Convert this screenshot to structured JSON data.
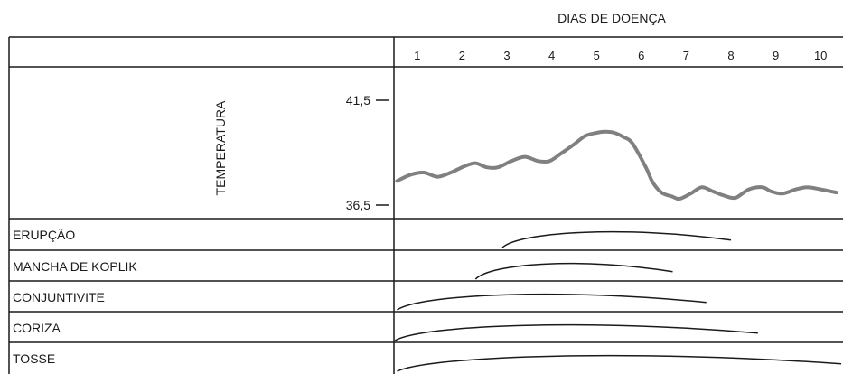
{
  "chart_data": {
    "type": "line",
    "title": "DIAS DE DOENÇA",
    "x_ticks": [
      "1",
      "2",
      "3",
      "4",
      "5",
      "6",
      "7",
      "8",
      "9",
      "10"
    ],
    "xlim": [
      0.5,
      10.5
    ],
    "temperature": {
      "label": "TEMPERATURA",
      "y_ticks": [
        "41,5",
        "36,5"
      ],
      "ylim": [
        36.5,
        41.5
      ],
      "x": [
        0.55,
        0.85,
        1.15,
        1.45,
        1.75,
        2.05,
        2.3,
        2.55,
        2.8,
        3.1,
        3.4,
        3.7,
        3.95,
        4.2,
        4.5,
        4.75,
        5.0,
        5.2,
        5.4,
        5.6,
        5.8,
        6.1,
        6.25,
        6.45,
        6.7,
        6.85,
        7.1,
        7.35,
        7.6,
        7.85,
        8.1,
        8.4,
        8.7,
        8.9,
        9.15,
        9.45,
        9.7,
        10.0,
        10.35
      ],
      "y": [
        37.65,
        37.95,
        38.05,
        37.85,
        38.05,
        38.35,
        38.5,
        38.3,
        38.3,
        38.6,
        38.8,
        38.6,
        38.6,
        38.95,
        39.4,
        39.8,
        39.95,
        40.0,
        39.95,
        39.75,
        39.45,
        38.3,
        37.6,
        37.1,
        36.9,
        36.8,
        37.05,
        37.35,
        37.15,
        36.95,
        36.85,
        37.25,
        37.35,
        37.15,
        37.05,
        37.25,
        37.35,
        37.25,
        37.1
      ]
    },
    "rows": [
      {
        "label": "ERUPÇÃO",
        "start": 2.9,
        "end": 8.0
      },
      {
        "label": "MANCHA DE KOPLIK",
        "start": 2.3,
        "end": 6.7
      },
      {
        "label": "CONJUNTIVITE",
        "start": 0.55,
        "end": 7.45
      },
      {
        "label": "CORIZA",
        "start": 0.5,
        "end": 8.6
      },
      {
        "label": "TOSSE",
        "start": 0.55,
        "end": 10.5
      }
    ],
    "grid": false
  }
}
